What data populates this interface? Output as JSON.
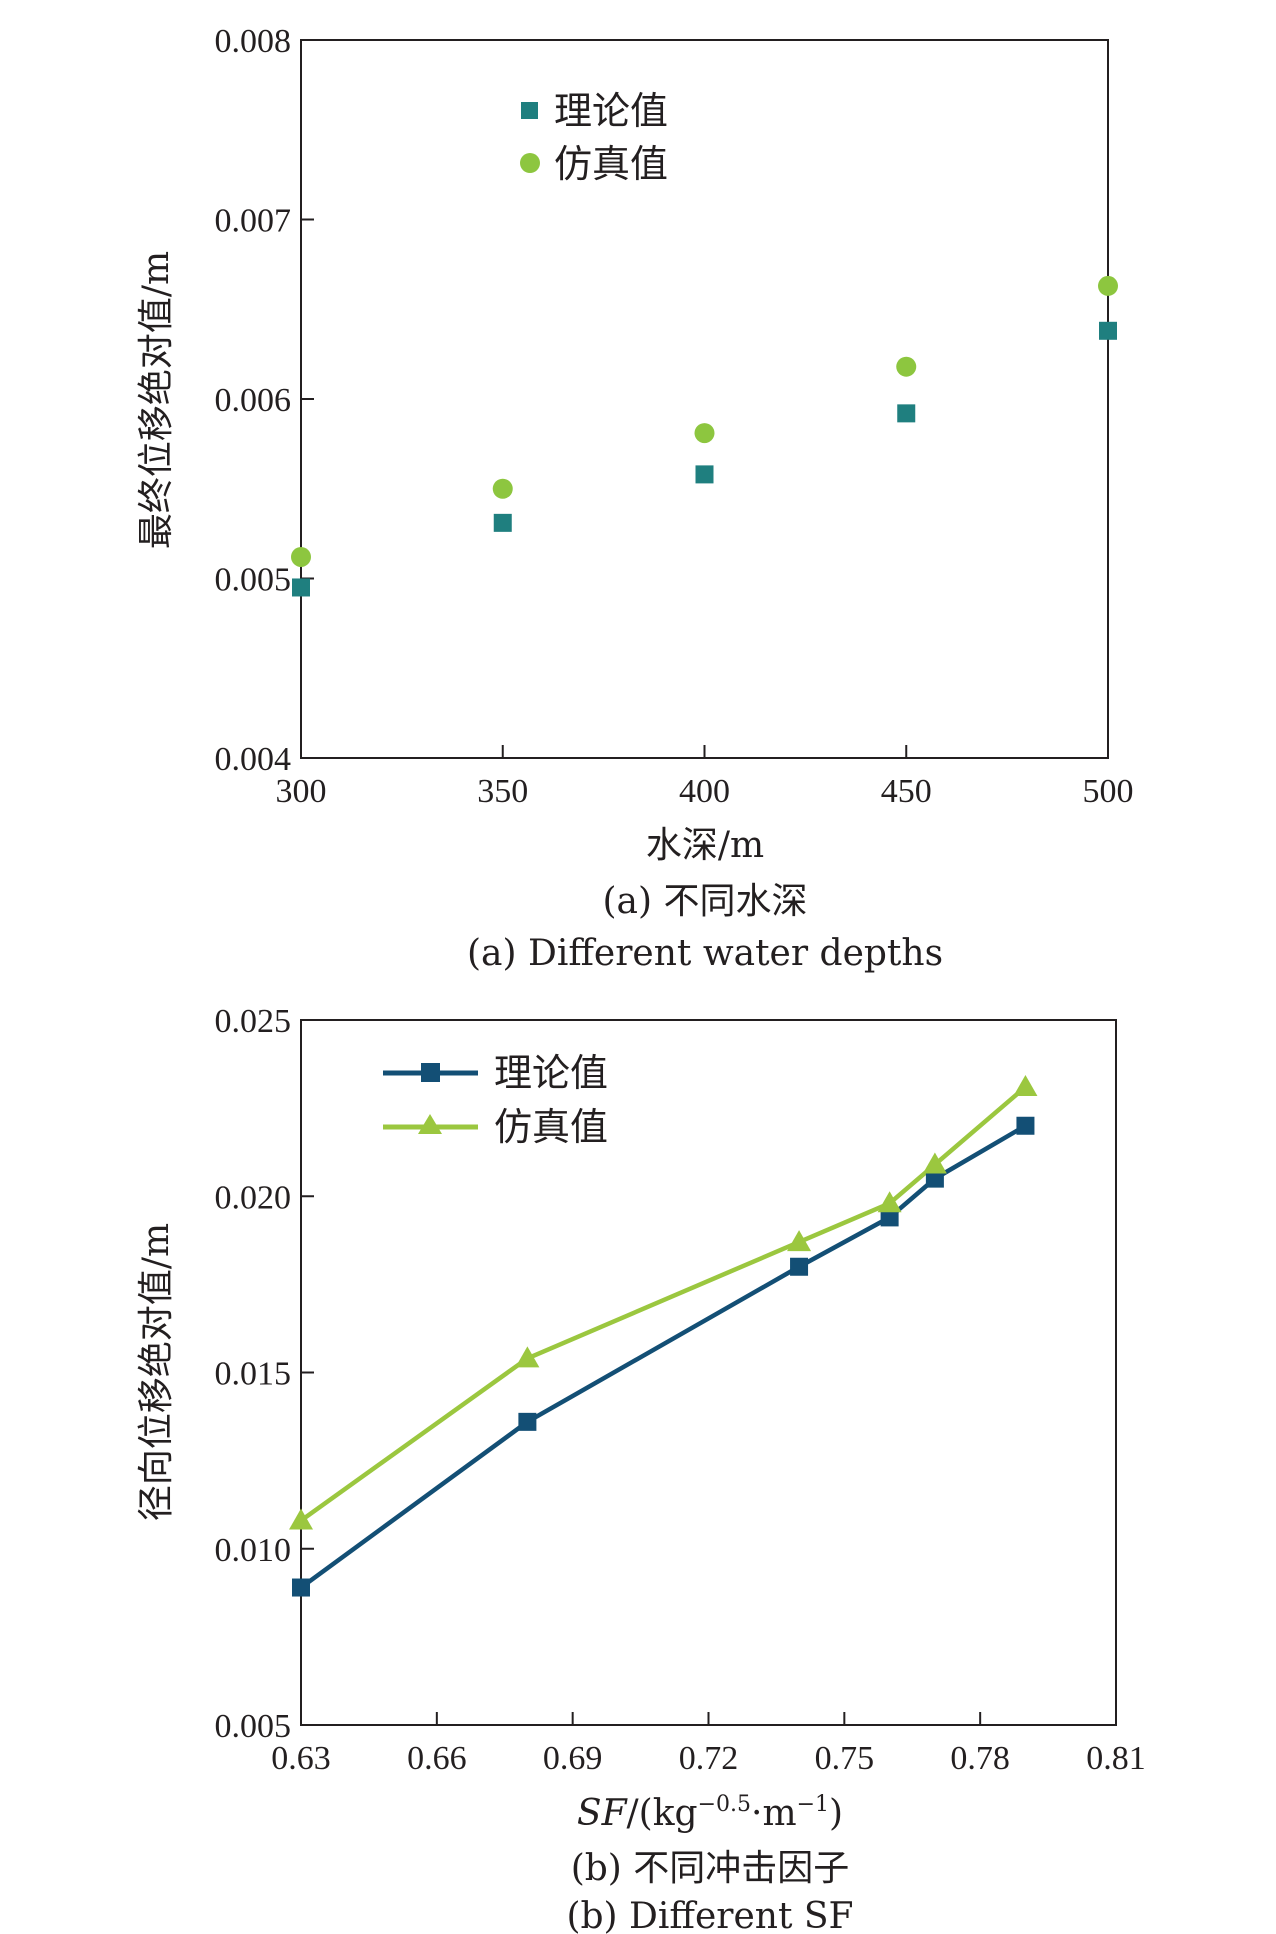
{
  "chart_data": [
    {
      "type": "scatter",
      "xlabel": "水深/m",
      "ylabel": "最终位移绝对值/m",
      "xlim": [
        300,
        500
      ],
      "ylim": [
        0.004,
        0.008
      ],
      "xticks": [
        "300",
        "350",
        "400",
        "450",
        "500"
      ],
      "yticks": [
        "0.004",
        "0.005",
        "0.006",
        "0.007",
        "0.008"
      ],
      "x": [
        300,
        350,
        400,
        450,
        500
      ],
      "series": [
        {
          "name": "理论值",
          "marker": "square",
          "color": "#1f7f7f",
          "values": [
            0.00495,
            0.00531,
            0.00558,
            0.00592,
            0.00638
          ]
        },
        {
          "name": "仿真值",
          "marker": "circle",
          "color": "#8dc63f",
          "values": [
            0.00512,
            0.0055,
            0.00581,
            0.00618,
            0.00663
          ]
        }
      ],
      "legend": "top-left",
      "grid": false,
      "caption_cn": "(a) 不同水深",
      "caption_en": "(a) Different water depths"
    },
    {
      "type": "line",
      "xlabel_italic": "SF",
      "xlabel_rest": "/(kg",
      "xlabel_sup1": "−0.5",
      "xlabel_mid": "·m",
      "xlabel_sup2": "−1",
      "xlabel_end": ")",
      "ylabel": "径向位移绝对值/m",
      "xlim": [
        0.63,
        0.81
      ],
      "ylim": [
        0.005,
        0.025
      ],
      "xticks": [
        "0.63",
        "0.66",
        "0.69",
        "0.72",
        "0.75",
        "0.78",
        "0.81"
      ],
      "yticks": [
        "0.005",
        "0.010",
        "0.015",
        "0.020",
        "0.025"
      ],
      "x": [
        0.63,
        0.68,
        0.74,
        0.76,
        0.77,
        0.79
      ],
      "series": [
        {
          "name": "理论值",
          "marker": "square",
          "color": "#134f75",
          "values": [
            0.0089,
            0.0136,
            0.018,
            0.0194,
            0.0205,
            0.022
          ]
        },
        {
          "name": "仿真值",
          "marker": "triangle",
          "color": "#9bc73f",
          "values": [
            0.0108,
            0.0154,
            0.0187,
            0.0198,
            0.0209,
            0.0231
          ]
        }
      ],
      "legend": "top-left",
      "grid": false,
      "caption_cn": "(b) 不同冲击因子",
      "caption_en": "(b) Different SF"
    }
  ]
}
